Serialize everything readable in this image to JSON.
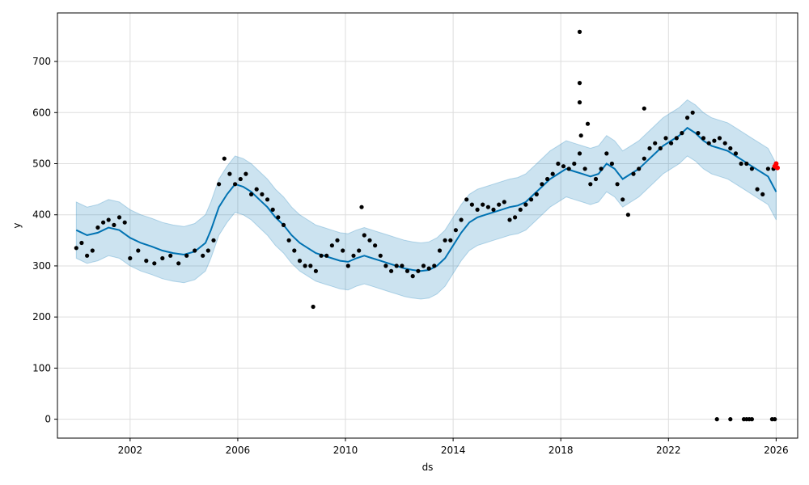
{
  "chart_data": {
    "type": "scatter",
    "title": "",
    "xlabel": "ds",
    "ylabel": "y",
    "xlim": [
      1999.3,
      2026.8
    ],
    "ylim": [
      -37,
      795
    ],
    "x_ticks": [
      {
        "value": 2002,
        "label": "2002"
      },
      {
        "value": 2006,
        "label": "2006"
      },
      {
        "value": 2010,
        "label": "2010"
      },
      {
        "value": 2014,
        "label": "2014"
      },
      {
        "value": 2018,
        "label": "2018"
      },
      {
        "value": 2022,
        "label": "2022"
      },
      {
        "value": 2026,
        "label": "2026"
      }
    ],
    "y_ticks": [
      {
        "value": 0,
        "label": "0"
      },
      {
        "value": 100,
        "label": "100"
      },
      {
        "value": 200,
        "label": "200"
      },
      {
        "value": 300,
        "label": "300"
      },
      {
        "value": 400,
        "label": "400"
      },
      {
        "value": 500,
        "label": "500"
      },
      {
        "value": 600,
        "label": "600"
      },
      {
        "value": 700,
        "label": "700"
      }
    ],
    "grid": true,
    "colors": {
      "observed": "#000000",
      "forecast": "#0072B2",
      "interval": "#0072B2",
      "highlight": "#ff0000",
      "grid": "#dddddd"
    },
    "forecast": {
      "x": [
        2000.0,
        2000.4,
        2000.8,
        2001.2,
        2001.6,
        2002.0,
        2002.4,
        2002.8,
        2003.2,
        2003.6,
        2004.0,
        2004.4,
        2004.8,
        2005.0,
        2005.3,
        2005.6,
        2005.9,
        2006.2,
        2006.5,
        2006.8,
        2007.1,
        2007.4,
        2007.7,
        2008.0,
        2008.3,
        2008.6,
        2008.9,
        2009.2,
        2009.5,
        2009.8,
        2010.1,
        2010.4,
        2010.7,
        2011.0,
        2011.3,
        2011.6,
        2011.9,
        2012.2,
        2012.5,
        2012.8,
        2013.1,
        2013.4,
        2013.7,
        2014.0,
        2014.3,
        2014.6,
        2014.9,
        2015.2,
        2015.5,
        2015.8,
        2016.1,
        2016.4,
        2016.7,
        2017.0,
        2017.3,
        2017.6,
        2017.9,
        2018.2,
        2018.5,
        2018.8,
        2019.1,
        2019.4,
        2019.7,
        2020.0,
        2020.3,
        2020.6,
        2020.9,
        2021.2,
        2021.5,
        2021.8,
        2022.1,
        2022.4,
        2022.7,
        2023.0,
        2023.3,
        2023.6,
        2023.9,
        2024.2,
        2024.5,
        2024.8,
        2025.1,
        2025.4,
        2025.7,
        2026.0
      ],
      "yhat": [
        370,
        360,
        365,
        375,
        370,
        355,
        345,
        338,
        330,
        325,
        322,
        328,
        345,
        370,
        415,
        440,
        460,
        455,
        445,
        430,
        415,
        395,
        380,
        360,
        345,
        335,
        325,
        320,
        315,
        310,
        308,
        315,
        320,
        315,
        310,
        305,
        300,
        295,
        292,
        290,
        292,
        300,
        315,
        340,
        365,
        385,
        395,
        400,
        405,
        410,
        415,
        418,
        425,
        440,
        455,
        470,
        480,
        490,
        485,
        480,
        475,
        480,
        500,
        490,
        470,
        480,
        490,
        505,
        520,
        535,
        545,
        555,
        570,
        560,
        545,
        535,
        530,
        525,
        515,
        505,
        495,
        485,
        475,
        445
      ]
    },
    "interval": {
      "x": [
        2000.0,
        2000.4,
        2000.8,
        2001.2,
        2001.6,
        2002.0,
        2002.4,
        2002.8,
        2003.2,
        2003.6,
        2004.0,
        2004.4,
        2004.8,
        2005.0,
        2005.3,
        2005.6,
        2005.9,
        2006.2,
        2006.5,
        2006.8,
        2007.1,
        2007.4,
        2007.7,
        2008.0,
        2008.3,
        2008.6,
        2008.9,
        2009.2,
        2009.5,
        2009.8,
        2010.1,
        2010.4,
        2010.7,
        2011.0,
        2011.3,
        2011.6,
        2011.9,
        2012.2,
        2012.5,
        2012.8,
        2013.1,
        2013.4,
        2013.7,
        2014.0,
        2014.3,
        2014.6,
        2014.9,
        2015.2,
        2015.5,
        2015.8,
        2016.1,
        2016.4,
        2016.7,
        2017.0,
        2017.3,
        2017.6,
        2017.9,
        2018.2,
        2018.5,
        2018.8,
        2019.1,
        2019.4,
        2019.7,
        2020.0,
        2020.3,
        2020.6,
        2020.9,
        2021.2,
        2021.5,
        2021.8,
        2022.1,
        2022.4,
        2022.7,
        2023.0,
        2023.3,
        2023.6,
        2023.9,
        2024.2,
        2024.5,
        2024.8,
        2025.1,
        2025.4,
        2025.7,
        2026.0
      ],
      "upper": [
        425,
        415,
        420,
        430,
        425,
        410,
        400,
        393,
        385,
        380,
        377,
        383,
        400,
        425,
        470,
        495,
        515,
        510,
        500,
        485,
        470,
        450,
        435,
        415,
        400,
        390,
        380,
        375,
        370,
        365,
        363,
        370,
        375,
        370,
        365,
        360,
        355,
        350,
        347,
        345,
        347,
        355,
        370,
        395,
        420,
        440,
        450,
        455,
        460,
        465,
        470,
        473,
        480,
        495,
        510,
        525,
        535,
        545,
        540,
        535,
        530,
        535,
        555,
        545,
        525,
        535,
        545,
        560,
        575,
        590,
        600,
        610,
        625,
        615,
        600,
        590,
        585,
        580,
        570,
        560,
        550,
        540,
        530,
        500
      ],
      "lower": [
        315,
        305,
        310,
        320,
        315,
        300,
        290,
        283,
        275,
        270,
        267,
        273,
        290,
        315,
        360,
        385,
        405,
        400,
        390,
        375,
        360,
        340,
        325,
        305,
        290,
        280,
        270,
        265,
        260,
        255,
        253,
        260,
        265,
        260,
        255,
        250,
        245,
        240,
        237,
        235,
        237,
        245,
        260,
        285,
        310,
        330,
        340,
        345,
        350,
        355,
        360,
        363,
        370,
        385,
        400,
        415,
        425,
        435,
        430,
        425,
        420,
        425,
        445,
        435,
        415,
        425,
        435,
        450,
        465,
        480,
        490,
        500,
        515,
        505,
        490,
        480,
        475,
        470,
        460,
        450,
        440,
        430,
        420,
        390
      ]
    },
    "observed": {
      "x": [
        2000.0,
        2000.2,
        2000.4,
        2000.6,
        2000.8,
        2001.0,
        2001.2,
        2001.4,
        2001.6,
        2001.8,
        2002.0,
        2002.3,
        2002.6,
        2002.9,
        2003.2,
        2003.5,
        2003.8,
        2004.1,
        2004.4,
        2004.7,
        2004.9,
        2005.1,
        2005.3,
        2005.5,
        2005.7,
        2005.9,
        2006.1,
        2006.3,
        2006.5,
        2006.7,
        2006.9,
        2007.1,
        2007.3,
        2007.5,
        2007.7,
        2007.9,
        2008.1,
        2008.3,
        2008.5,
        2008.7,
        2008.9,
        2009.1,
        2009.3,
        2009.5,
        2009.7,
        2009.9,
        2010.1,
        2010.3,
        2010.5,
        2010.7,
        2010.9,
        2011.1,
        2011.3,
        2011.5,
        2011.7,
        2011.9,
        2012.1,
        2012.3,
        2012.5,
        2012.7,
        2012.9,
        2013.1,
        2013.3,
        2013.5,
        2013.7,
        2013.9,
        2014.1,
        2014.3,
        2014.5,
        2014.7,
        2014.9,
        2015.1,
        2015.3,
        2015.5,
        2015.7,
        2015.9,
        2016.1,
        2016.3,
        2016.5,
        2016.7,
        2016.9,
        2017.1,
        2017.3,
        2017.5,
        2017.7,
        2017.9,
        2018.1,
        2018.3,
        2018.5,
        2018.7,
        2018.9,
        2019.1,
        2019.3,
        2019.5,
        2019.7,
        2019.9,
        2020.1,
        2020.3,
        2020.5,
        2020.7,
        2020.9,
        2021.1,
        2021.3,
        2021.5,
        2021.7,
        2021.9,
        2022.1,
        2022.3,
        2022.5,
        2022.7,
        2022.9,
        2023.1,
        2023.3,
        2023.5,
        2023.7,
        2023.9,
        2024.1,
        2024.3,
        2024.5,
        2024.7,
        2024.9,
        2025.1,
        2025.3,
        2025.5,
        2025.7,
        2025.9,
        2008.8,
        2010.6,
        2018.7,
        2018.7,
        2018.7,
        2018.75,
        2019.0,
        2021.1,
        2023.8,
        2024.3,
        2024.8,
        2024.9,
        2025.0,
        2025.1,
        2025.85,
        2025.95
      ],
      "y": [
        335,
        345,
        320,
        330,
        375,
        385,
        390,
        380,
        395,
        385,
        315,
        330,
        310,
        305,
        315,
        320,
        305,
        320,
        330,
        320,
        330,
        350,
        460,
        510,
        480,
        460,
        470,
        480,
        440,
        450,
        440,
        430,
        410,
        395,
        380,
        350,
        330,
        310,
        300,
        300,
        290,
        320,
        320,
        340,
        350,
        330,
        300,
        320,
        330,
        360,
        350,
        340,
        320,
        300,
        290,
        300,
        300,
        290,
        280,
        290,
        300,
        295,
        300,
        330,
        350,
        350,
        370,
        390,
        430,
        420,
        410,
        420,
        415,
        410,
        420,
        425,
        390,
        395,
        410,
        420,
        430,
        440,
        460,
        470,
        480,
        500,
        495,
        490,
        500,
        520,
        490,
        460,
        470,
        490,
        520,
        500,
        460,
        430,
        400,
        480,
        490,
        510,
        530,
        540,
        530,
        550,
        540,
        550,
        560,
        590,
        600,
        560,
        550,
        540,
        545,
        550,
        540,
        530,
        520,
        500,
        500,
        490,
        450,
        440,
        490,
        490,
        220,
        415,
        758,
        658,
        620,
        555,
        578,
        608,
        0,
        0,
        0,
        0,
        0,
        0,
        0,
        0
      ]
    },
    "highlight": {
      "x": [
        2025.95,
        2026.0,
        2026.05
      ],
      "y": [
        495,
        500,
        492
      ]
    }
  }
}
